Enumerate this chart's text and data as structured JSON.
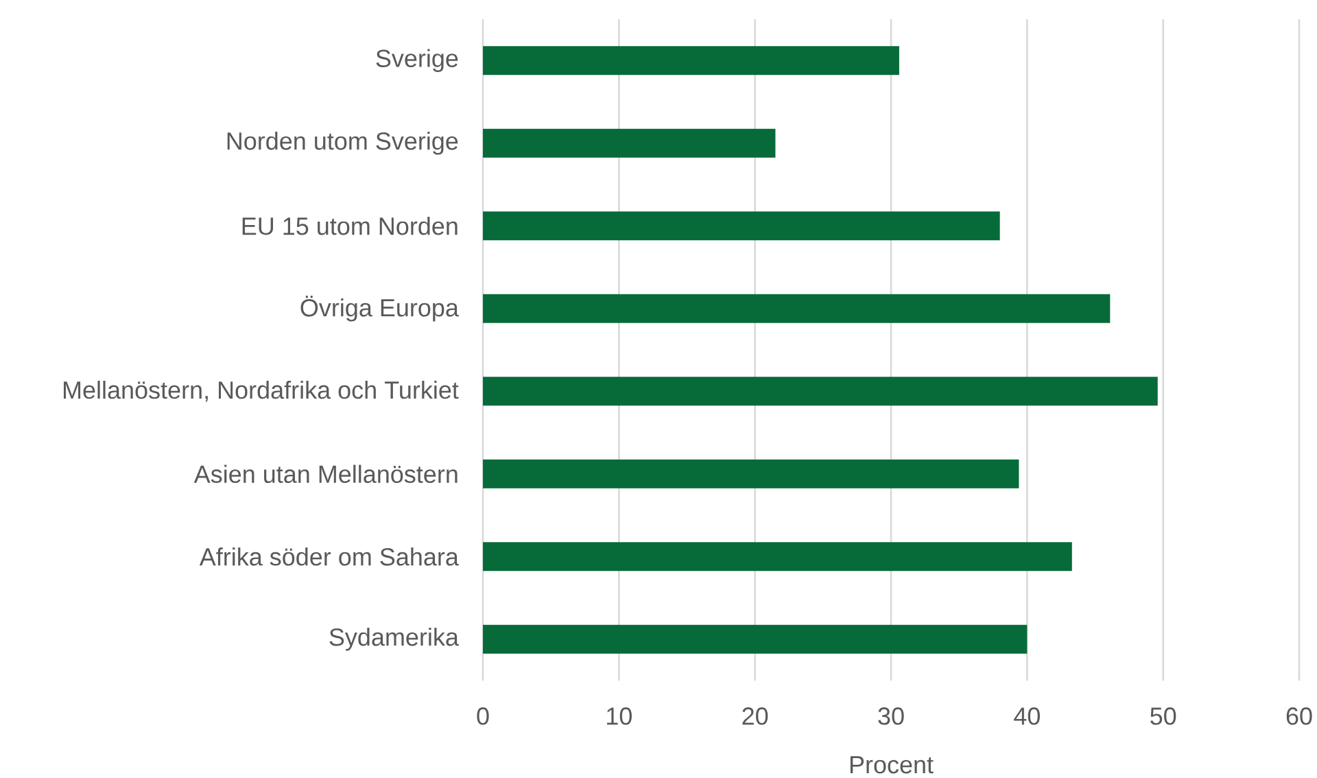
{
  "chart_data": {
    "type": "bar",
    "orientation": "horizontal",
    "xlabel": "Procent",
    "categories": [
      "Sverige",
      "Norden utom Sverige",
      "EU 15 utom Norden",
      "Övriga Europa",
      "Mellanöstern, Nordafrika och Turkiet",
      "Asien utan Mellanöstern",
      "Afrika söder om Sahara",
      "Sydamerika"
    ],
    "values": [
      30.6,
      21.5,
      38.0,
      46.1,
      49.6,
      39.4,
      43.3,
      40.0
    ],
    "color": "#066b38",
    "xlim": [
      0,
      60
    ],
    "xticks": [
      0,
      10,
      20,
      30,
      40,
      50,
      60
    ],
    "grid": "x"
  }
}
